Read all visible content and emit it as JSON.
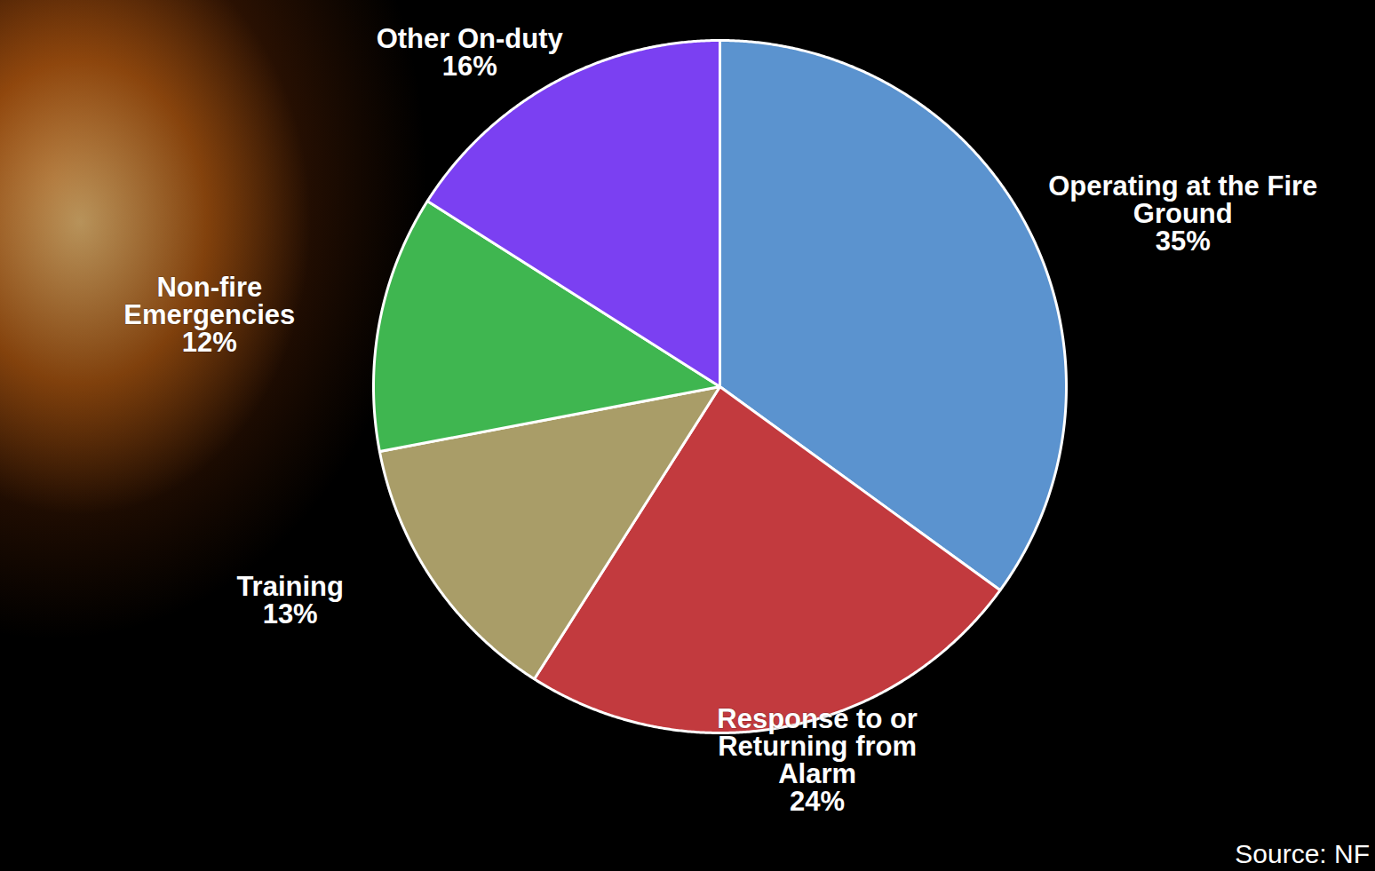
{
  "chart_data": {
    "type": "pie",
    "categories": [
      "Operating at the Fire Ground",
      "Response to or Returning from Alarm",
      "Training",
      "Non-fire Emergencies",
      "Other On-duty"
    ],
    "values": [
      35,
      24,
      13,
      12,
      16
    ],
    "value_labels": [
      "35%",
      "24%",
      "13%",
      "12%",
      "16%"
    ],
    "colors": [
      "#5b93cf",
      "#c23a3e",
      "#a99d68",
      "#3fb650",
      "#7b40f2"
    ],
    "data_labels": true,
    "caption": "Source: NF"
  }
}
